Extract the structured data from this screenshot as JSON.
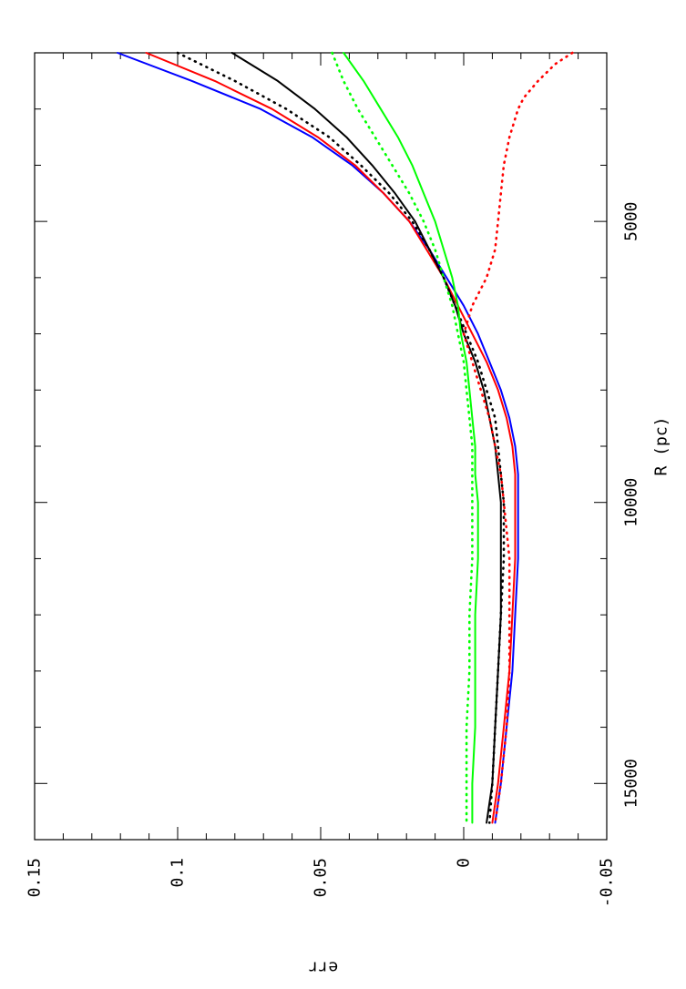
{
  "chart_data": {
    "type": "line",
    "orientation": "rotated-90-clockwise",
    "title": "",
    "xlabel": "R (pc)",
    "ylabel": "err",
    "xlim": [
      2000,
      16000
    ],
    "ylim": [
      -0.05,
      0.15
    ],
    "x_ticks": [
      5000,
      10000,
      15000
    ],
    "x_tick_labels": [
      "5000",
      "10000",
      "15000"
    ],
    "y_ticks": [
      -0.05,
      0,
      0.05,
      0.1,
      0.15
    ],
    "y_tick_labels": [
      "-0.05",
      "0",
      "0.05",
      "0.1",
      "0.15"
    ],
    "grid": false,
    "legend": "none",
    "series": [
      {
        "color": "#0000ff",
        "style": "solid",
        "x": [
          2000,
          2500,
          3000,
          3500,
          4000,
          4500,
          5000,
          5500,
          6000,
          6500,
          7000,
          7500,
          8000,
          8500,
          9000,
          9500,
          10000,
          11000,
          12000,
          13000,
          14000,
          15000,
          15700
        ],
        "y": [
          0.121,
          0.095,
          0.071,
          0.053,
          0.039,
          0.028,
          0.019,
          0.012,
          0.006,
          0.0,
          -0.005,
          -0.009,
          -0.013,
          -0.016,
          -0.018,
          -0.019,
          -0.019,
          -0.019,
          -0.018,
          -0.017,
          -0.015,
          -0.013,
          -0.011
        ]
      },
      {
        "color": "#ff0000",
        "style": "solid",
        "x": [
          2000,
          2500,
          3000,
          3500,
          4000,
          4500,
          5000,
          5500,
          6000,
          6500,
          7000,
          7500,
          8000,
          8500,
          9000,
          9500,
          10000,
          11000,
          12000,
          13000,
          14000,
          15000,
          15700
        ],
        "y": [
          0.111,
          0.087,
          0.067,
          0.051,
          0.038,
          0.028,
          0.019,
          0.013,
          0.007,
          0.002,
          -0.003,
          -0.008,
          -0.012,
          -0.015,
          -0.017,
          -0.018,
          -0.018,
          -0.018,
          -0.017,
          -0.016,
          -0.014,
          -0.012,
          -0.01
        ]
      },
      {
        "color": "#000000",
        "style": "dotted",
        "x": [
          2000,
          2500,
          3000,
          3500,
          4000,
          4500,
          5000,
          5500,
          6000,
          6500,
          7000,
          7500,
          8000,
          8500,
          9000,
          9500,
          10000,
          11000,
          12000,
          13000,
          14000,
          15000,
          15700
        ],
        "y": [
          0.1,
          0.08,
          0.062,
          0.047,
          0.036,
          0.026,
          0.018,
          0.012,
          0.007,
          0.003,
          -0.001,
          -0.005,
          -0.008,
          -0.011,
          -0.012,
          -0.013,
          -0.014,
          -0.014,
          -0.013,
          -0.012,
          -0.011,
          -0.01,
          -0.009
        ]
      },
      {
        "color": "#000000",
        "style": "solid",
        "x": [
          2000,
          2500,
          3000,
          3500,
          4000,
          4500,
          5000,
          5500,
          6000,
          6500,
          7000,
          7500,
          8000,
          8500,
          9000,
          9500,
          10000,
          11000,
          12000,
          13000,
          14000,
          15000,
          15700
        ],
        "y": [
          0.081,
          0.065,
          0.052,
          0.041,
          0.032,
          0.024,
          0.017,
          0.012,
          0.007,
          0.003,
          0.0,
          -0.004,
          -0.007,
          -0.009,
          -0.011,
          -0.012,
          -0.013,
          -0.013,
          -0.013,
          -0.012,
          -0.011,
          -0.01,
          -0.008
        ]
      },
      {
        "color": "#00ff00",
        "style": "dotted",
        "x": [
          2000,
          2500,
          3000,
          3500,
          4000,
          4500,
          5000,
          5500,
          6000,
          6500,
          7000,
          7500,
          8000,
          8500,
          9000,
          9500,
          10000,
          11000,
          12000,
          13000,
          14000,
          15000,
          15700
        ],
        "y": [
          0.046,
          0.042,
          0.037,
          0.031,
          0.025,
          0.019,
          0.014,
          0.01,
          0.007,
          0.004,
          0.002,
          0.0,
          -0.001,
          -0.002,
          -0.003,
          -0.003,
          -0.003,
          -0.003,
          -0.002,
          -0.002,
          -0.001,
          -0.001,
          -0.001
        ]
      },
      {
        "color": "#00ff00",
        "style": "solid",
        "x": [
          2000,
          2500,
          3000,
          3500,
          4000,
          4500,
          5000,
          5500,
          6000,
          6500,
          7000,
          7500,
          8000,
          8500,
          9000,
          9500,
          10000,
          11000,
          12000,
          13000,
          14000,
          15000,
          15700
        ],
        "y": [
          0.042,
          0.035,
          0.029,
          0.023,
          0.018,
          0.014,
          0.01,
          0.007,
          0.004,
          0.002,
          0.001,
          -0.001,
          -0.002,
          -0.003,
          -0.004,
          -0.004,
          -0.005,
          -0.005,
          -0.004,
          -0.004,
          -0.004,
          -0.003,
          -0.003
        ]
      },
      {
        "color": "#ff0000",
        "style": "dotted",
        "x": [
          2000,
          2200,
          2500,
          2800,
          3000,
          3500,
          4000,
          4500,
          5000,
          5500,
          6000,
          6500,
          7000,
          7500,
          8000,
          8500,
          9000,
          9500,
          10000,
          11000,
          12000,
          13000,
          14000,
          15000,
          15700
        ],
        "y": [
          -0.038,
          -0.032,
          -0.026,
          -0.021,
          -0.019,
          -0.016,
          -0.014,
          -0.013,
          -0.012,
          -0.011,
          -0.008,
          -0.003,
          0.0,
          -0.003,
          -0.006,
          -0.009,
          -0.011,
          -0.013,
          -0.014,
          -0.016,
          -0.016,
          -0.016,
          -0.015,
          -0.013,
          -0.011
        ]
      }
    ]
  }
}
